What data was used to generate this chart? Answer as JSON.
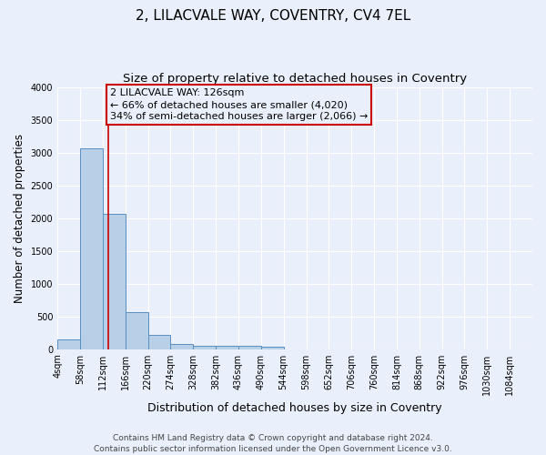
{
  "title1": "2, LILACVALE WAY, COVENTRY, CV4 7EL",
  "title2": "Size of property relative to detached houses in Coventry",
  "xlabel": "Distribution of detached houses by size in Coventry",
  "ylabel": "Number of detached properties",
  "categories": [
    "4sqm",
    "58sqm",
    "112sqm",
    "166sqm",
    "220sqm",
    "274sqm",
    "328sqm",
    "382sqm",
    "436sqm",
    "490sqm",
    "544sqm",
    "598sqm",
    "652sqm",
    "706sqm",
    "760sqm",
    "814sqm",
    "868sqm",
    "922sqm",
    "976sqm",
    "1030sqm",
    "1084sqm"
  ],
  "bar_edges": [
    4,
    58,
    112,
    166,
    220,
    274,
    328,
    382,
    436,
    490,
    544,
    598,
    652,
    706,
    760,
    814,
    868,
    922,
    976,
    1030,
    1084
  ],
  "bar_heights": [
    150,
    3060,
    2060,
    560,
    220,
    75,
    55,
    45,
    45,
    30,
    0,
    0,
    0,
    0,
    0,
    0,
    0,
    0,
    0,
    0
  ],
  "bar_color": "#b8cfe8",
  "bar_edge_color": "#5a8fc2",
  "background_color": "#eaf0fb",
  "grid_color": "#ffffff",
  "vline_x": 126,
  "vline_color": "#cc0000",
  "annotation_line1": "2 LILACVALE WAY: 126sqm",
  "annotation_line2": "← 66% of detached houses are smaller (4,020)",
  "annotation_line3": "34% of semi-detached houses are larger (2,066) →",
  "annotation_box_color": "#cc0000",
  "ylim": [
    0,
    4000
  ],
  "yticks": [
    0,
    500,
    1000,
    1500,
    2000,
    2500,
    3000,
    3500,
    4000
  ],
  "footnote": "Contains HM Land Registry data © Crown copyright and database right 2024.\nContains public sector information licensed under the Open Government Licence v3.0.",
  "title1_fontsize": 11,
  "title2_fontsize": 9.5,
  "xlabel_fontsize": 9,
  "ylabel_fontsize": 8.5,
  "tick_fontsize": 7,
  "annotation_fontsize": 8,
  "footnote_fontsize": 6.5
}
